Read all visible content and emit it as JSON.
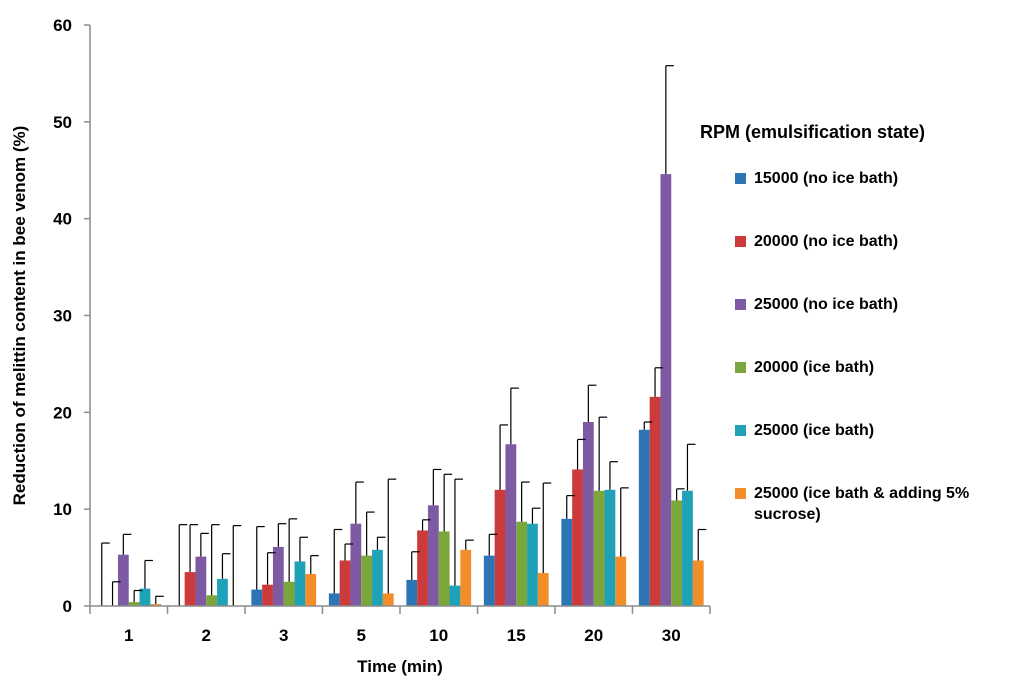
{
  "chart_data": {
    "type": "bar",
    "title": "",
    "xlabel": "Time (min)",
    "ylabel": "Reduction of melittin content in bee venom (%)",
    "ylim": [
      0,
      60
    ],
    "yticks": [
      "0",
      "10",
      "20",
      "30",
      "40",
      "50",
      "60"
    ],
    "grid": false,
    "categories": [
      "1",
      "2",
      "3",
      "5",
      "10",
      "15",
      "20",
      "30"
    ],
    "legend": {
      "title": "RPM  (emulsification  state)",
      "placement": "right"
    },
    "series": [
      {
        "name": "15000 (no ice bath)",
        "color": "#2e75b6",
        "values": [
          0,
          0,
          1.7,
          1.3,
          2.7,
          5.2,
          9.0,
          18.2
        ],
        "errors": [
          6.5,
          8.4,
          6.5,
          6.6,
          2.9,
          2.2,
          2.4,
          0.8
        ]
      },
      {
        "name": "20000 (no ice bath)",
        "color": "#cc3b3b",
        "values": [
          0,
          3.5,
          2.2,
          4.7,
          7.8,
          12.0,
          14.1,
          21.6
        ],
        "errors": [
          2.5,
          4.9,
          3.3,
          1.7,
          1.1,
          6.7,
          3.1,
          3.0
        ]
      },
      {
        "name": "25000 (no ice bath)",
        "color": "#7e5aa2",
        "values": [
          5.3,
          5.1,
          6.1,
          8.5,
          10.4,
          16.7,
          19.0,
          44.6
        ],
        "errors": [
          2.1,
          2.4,
          2.4,
          4.3,
          3.7,
          5.8,
          3.8,
          11.2
        ]
      },
      {
        "name": "20000 (ice bath)",
        "color": "#7aa63c",
        "values": [
          0.4,
          1.1,
          2.5,
          5.2,
          7.7,
          8.7,
          11.9,
          10.9
        ],
        "errors": [
          1.2,
          7.3,
          6.5,
          4.5,
          5.9,
          4.1,
          7.6,
          1.2
        ]
      },
      {
        "name": "25000 (ice bath)",
        "color": "#1fa1b8",
        "values": [
          1.8,
          2.8,
          4.6,
          5.8,
          2.1,
          8.5,
          12.0,
          11.9
        ],
        "errors": [
          2.9,
          2.6,
          2.5,
          1.3,
          11.0,
          1.6,
          2.9,
          4.8
        ]
      },
      {
        "name": "25000 (ice bath & adding 5% sucrose)",
        "color": "#f28d2a",
        "values": [
          0.2,
          0,
          3.3,
          1.3,
          5.8,
          3.4,
          5.1,
          4.7
        ],
        "errors": [
          0.8,
          8.3,
          1.9,
          11.8,
          1.0,
          9.3,
          7.1,
          3.2
        ]
      }
    ]
  }
}
